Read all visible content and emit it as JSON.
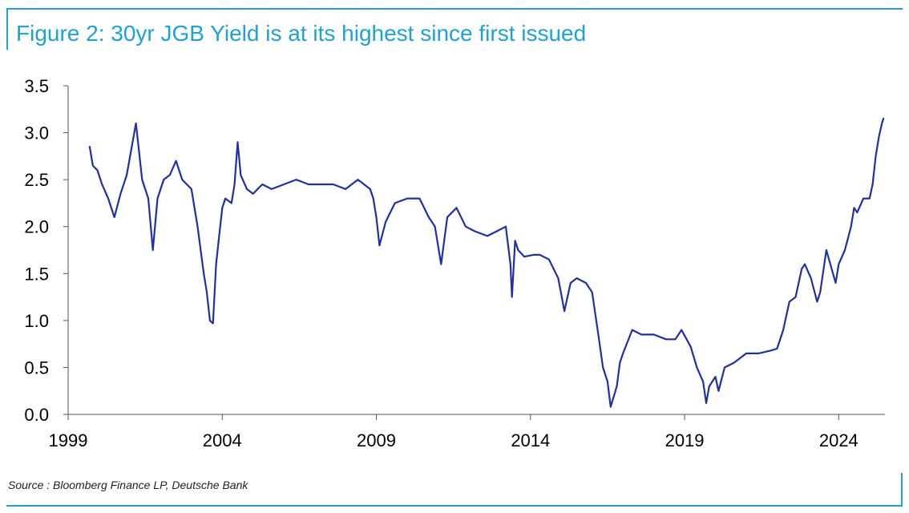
{
  "header": {
    "title": "Figure 2: 30yr JGB Yield is at its highest since first issued"
  },
  "footer": {
    "source": "Source : Bloomberg Finance LP, Deutsche Bank"
  },
  "colors": {
    "accent": "#1ba3d8",
    "series_line": "#1f2fa6",
    "axis": "#555555"
  },
  "chart_data": {
    "type": "line",
    "title": "Figure 2: 30yr JGB Yield is at its highest since first issued",
    "xlabel": "",
    "ylabel": "",
    "xlim": [
      1999,
      2025.5
    ],
    "ylim": [
      0,
      3.5
    ],
    "x_ticks": [
      1999,
      2004,
      2009,
      2014,
      2019,
      2024
    ],
    "y_ticks": [
      0.0,
      0.5,
      1.0,
      1.5,
      2.0,
      2.5,
      3.0,
      3.5
    ],
    "y_tick_labels": [
      "0.0",
      "0.5",
      "1.0",
      "1.5",
      "2.0",
      "2.5",
      "3.0",
      "3.5"
    ],
    "grid": false,
    "legend": "none",
    "series": [
      {
        "x": [
          1999.7,
          1999.8,
          1999.95,
          2000.1,
          2000.3,
          2000.5,
          2000.7,
          2000.9,
          2001.2,
          2001.4,
          2001.6,
          2001.75,
          2001.9,
          2002.1,
          2002.3,
          2002.5,
          2002.7,
          2003.0,
          2003.2,
          2003.4,
          2003.5,
          2003.6,
          2003.7,
          2003.8,
          2003.9,
          2004.0,
          2004.1,
          2004.3,
          2004.4,
          2004.5,
          2004.6,
          2004.8,
          2005.0,
          2005.3,
          2005.6,
          2006.0,
          2006.4,
          2006.8,
          2007.2,
          2007.6,
          2008.0,
          2008.4,
          2008.8,
          2008.9,
          2009.0,
          2009.1,
          2009.3,
          2009.6,
          2010.0,
          2010.4,
          2010.7,
          2010.9,
          2011.1,
          2011.3,
          2011.6,
          2011.9,
          2012.2,
          2012.6,
          2012.9,
          2013.2,
          2013.35,
          2013.4,
          2013.5,
          2013.6,
          2013.8,
          2014.1,
          2014.3,
          2014.6,
          2014.9,
          2015.1,
          2015.3,
          2015.5,
          2015.8,
          2016.0,
          2016.2,
          2016.35,
          2016.5,
          2016.6,
          2016.8,
          2016.9,
          2017.0,
          2017.3,
          2017.6,
          2018.0,
          2018.4,
          2018.7,
          2018.9,
          2019.2,
          2019.4,
          2019.6,
          2019.7,
          2019.8,
          2020.0,
          2020.1,
          2020.3,
          2020.6,
          2021.0,
          2021.4,
          2021.8,
          2022.0,
          2022.2,
          2022.4,
          2022.6,
          2022.8,
          2022.9,
          2023.1,
          2023.3,
          2023.4,
          2023.6,
          2023.9,
          2024.0,
          2024.2,
          2024.4,
          2024.5,
          2024.6,
          2024.8,
          2025.0,
          2025.1,
          2025.2,
          2025.3,
          2025.4,
          2025.45
        ],
        "values": [
          2.85,
          2.65,
          2.6,
          2.45,
          2.3,
          2.1,
          2.35,
          2.55,
          3.1,
          2.5,
          2.3,
          1.75,
          2.3,
          2.5,
          2.55,
          2.7,
          2.5,
          2.4,
          2.0,
          1.5,
          1.3,
          1.0,
          0.97,
          1.6,
          1.9,
          2.2,
          2.3,
          2.25,
          2.45,
          2.9,
          2.55,
          2.4,
          2.35,
          2.45,
          2.4,
          2.45,
          2.5,
          2.45,
          2.45,
          2.45,
          2.4,
          2.5,
          2.4,
          2.3,
          2.1,
          1.8,
          2.05,
          2.25,
          2.3,
          2.3,
          2.1,
          2.0,
          1.6,
          2.1,
          2.2,
          2.0,
          1.95,
          1.9,
          1.95,
          2.0,
          1.6,
          1.25,
          1.85,
          1.75,
          1.68,
          1.7,
          1.7,
          1.65,
          1.45,
          1.1,
          1.4,
          1.45,
          1.4,
          1.3,
          0.85,
          0.5,
          0.35,
          0.08,
          0.3,
          0.55,
          0.65,
          0.9,
          0.85,
          0.85,
          0.8,
          0.8,
          0.9,
          0.72,
          0.5,
          0.35,
          0.12,
          0.3,
          0.4,
          0.25,
          0.5,
          0.55,
          0.65,
          0.65,
          0.68,
          0.7,
          0.9,
          1.2,
          1.25,
          1.55,
          1.6,
          1.45,
          1.2,
          1.3,
          1.75,
          1.4,
          1.6,
          1.75,
          2.0,
          2.2,
          2.15,
          2.3,
          2.3,
          2.45,
          2.75,
          2.95,
          3.1,
          3.15
        ]
      }
    ]
  }
}
